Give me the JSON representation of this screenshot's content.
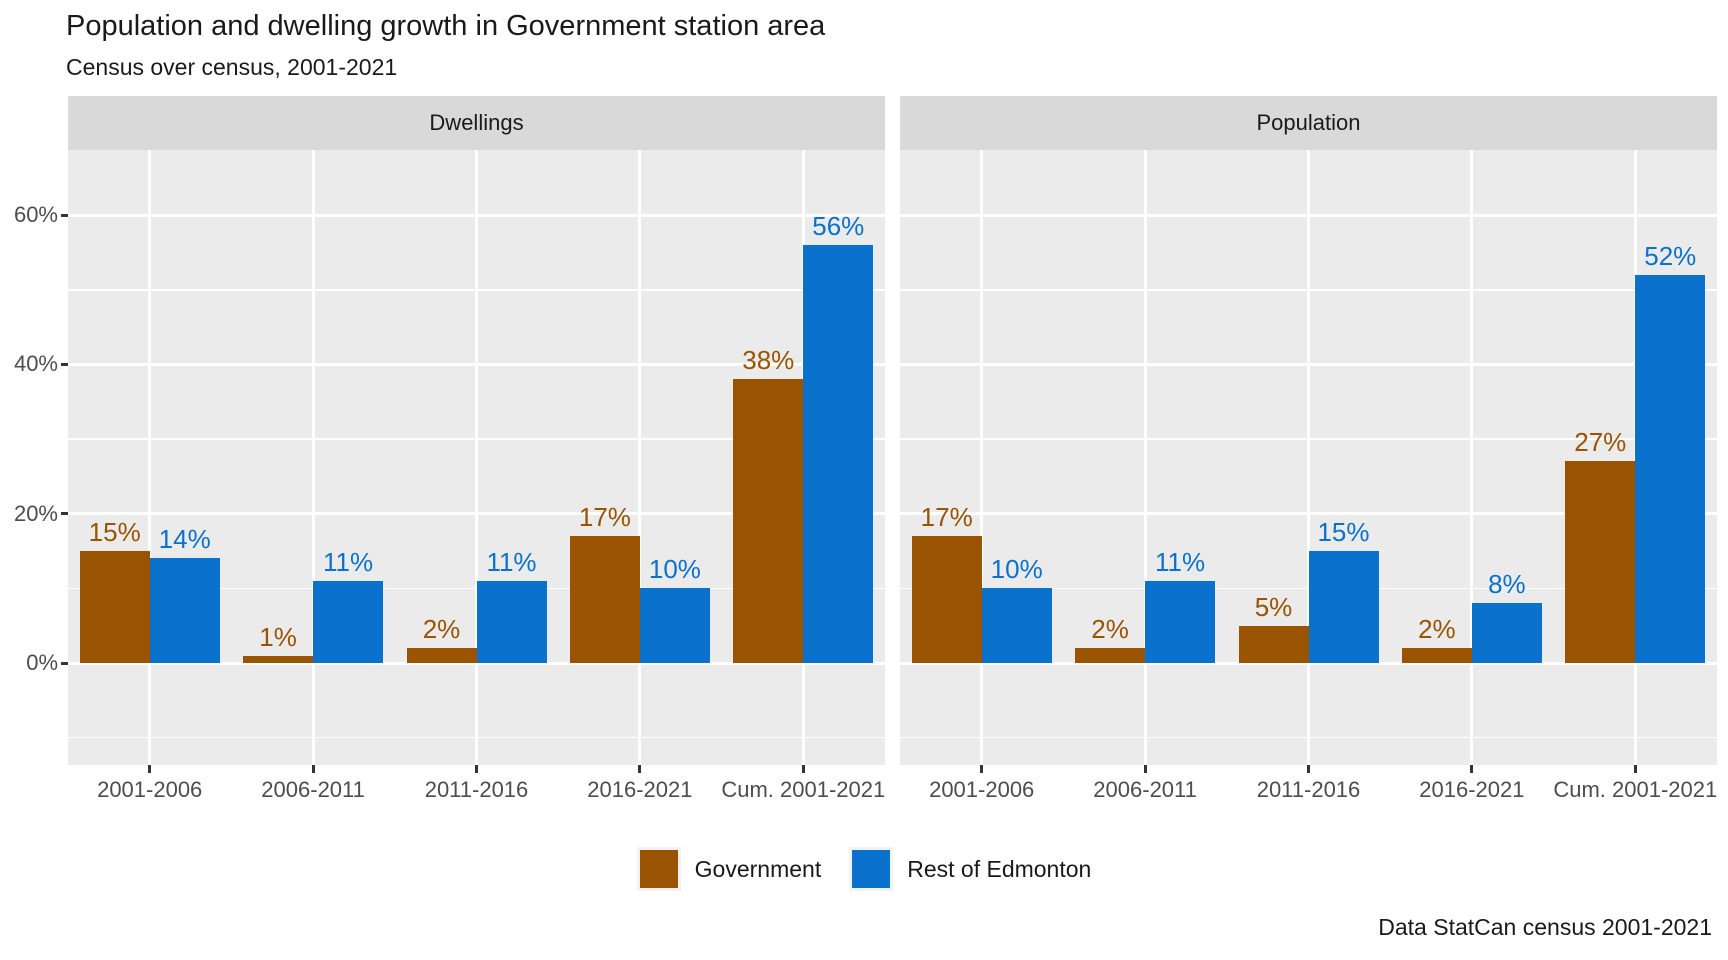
{
  "title": "Population and dwelling growth in Government station area",
  "subtitle": "Census over census, 2001-2021",
  "caption": "Data StatCan census 2001-2021",
  "colors": {
    "government": "#9A5300",
    "rest_of_edmonton": "#0A72CD",
    "panel_background": "#EBEBEB",
    "strip_background": "#D9D9D9",
    "gridline": "#FFFFFF",
    "axis_text": "#4D4D4D",
    "tick_mark": "#333333"
  },
  "legend": {
    "position": "bottom",
    "items": [
      {
        "label": "Government",
        "color": "#9A5300"
      },
      {
        "label": "Rest of Edmonton",
        "color": "#0A72CD"
      }
    ]
  },
  "chart_data": {
    "type": "bar",
    "title": "Population and dwelling growth in Government station area",
    "subtitle": "Census over census, 2001-2021",
    "caption": "Data StatCan census 2001-2021",
    "grid": "on",
    "legend_position": "bottom",
    "value_label_suffix": "%",
    "y_axis": {
      "tick_values": [
        0,
        20,
        40,
        60
      ],
      "tick_labels": [
        "0%",
        "20%",
        "40%",
        "60%"
      ],
      "minor_tick_values": [
        -10,
        10,
        30,
        50
      ],
      "range": [
        -13.7,
        68.7
      ]
    },
    "facets": [
      {
        "label": "Dwellings",
        "categories": [
          "2001-2006",
          "2006-2011",
          "2011-2016",
          "2016-2021",
          "Cum. 2001-2021"
        ],
        "series": [
          {
            "name": "Government",
            "values": [
              15,
              1,
              2,
              17,
              38
            ]
          },
          {
            "name": "Rest of Edmonton",
            "values": [
              14,
              11,
              11,
              10,
              56
            ]
          }
        ]
      },
      {
        "label": "Population",
        "categories": [
          "2001-2006",
          "2006-2011",
          "2011-2016",
          "2016-2021",
          "Cum. 2001-2021"
        ],
        "series": [
          {
            "name": "Government",
            "values": [
              17,
              2,
              5,
              2,
              27
            ]
          },
          {
            "name": "Rest of Edmonton",
            "values": [
              10,
              11,
              15,
              8,
              52
            ]
          }
        ]
      }
    ]
  }
}
